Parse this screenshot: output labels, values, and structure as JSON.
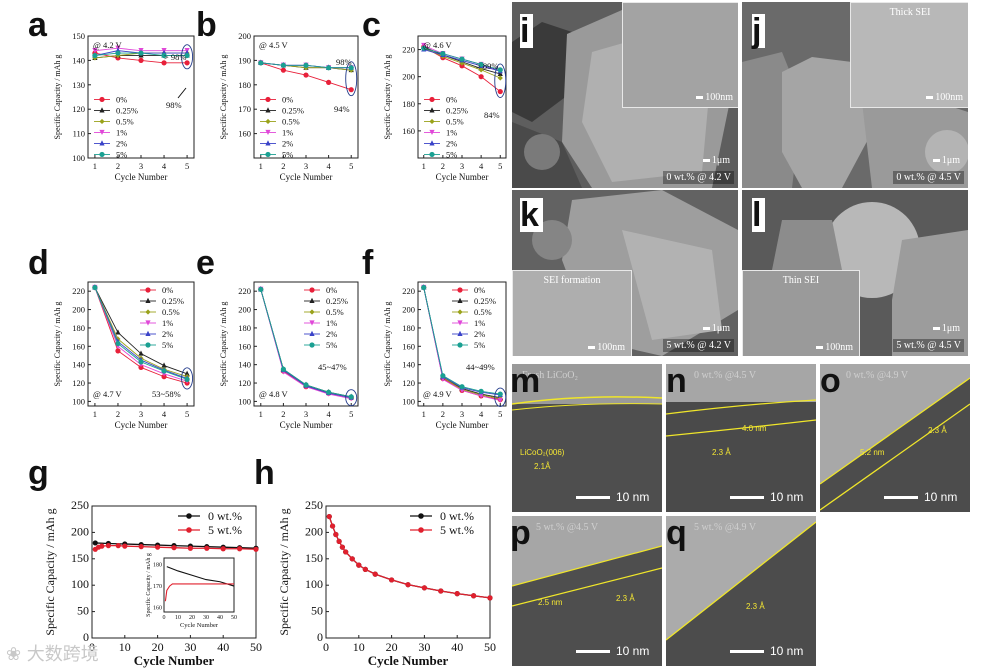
{
  "panel_labels": {
    "a": "a",
    "b": "b",
    "c": "c",
    "d": "d",
    "e": "e",
    "f": "f",
    "g": "g",
    "h": "h",
    "i": "i",
    "j": "j",
    "k": "k",
    "l": "l",
    "m": "m",
    "n": "n",
    "o": "o",
    "p": "p",
    "q": "q"
  },
  "colors": {
    "c0": "#e8203a",
    "c025": "#222222",
    "c05": "#9aa21a",
    "c1": "#e047d8",
    "c2": "#3a43c8",
    "c5": "#1aa092",
    "black": "#111111",
    "red": "#e0202e",
    "tem_line": "#f0e62a"
  },
  "chart_data": [
    {
      "id": "a",
      "type": "line",
      "ylabel": "Specific Capacity / mAh g",
      "xlabel": "Cycle Number",
      "x": [
        1,
        2,
        3,
        4,
        5
      ],
      "ylim": [
        100,
        150
      ],
      "yticks": [
        100,
        110,
        120,
        130,
        140,
        150
      ],
      "condition": "@ 4.2 V",
      "annotations": [
        "> 98%",
        "98%"
      ],
      "series": [
        {
          "name": "0%",
          "values": [
            143,
            141,
            140,
            139,
            139
          ]
        },
        {
          "name": "0.25%",
          "values": [
            141,
            142,
            142,
            142,
            142
          ]
        },
        {
          "name": "0.5%",
          "values": [
            141,
            142,
            143,
            143,
            143
          ]
        },
        {
          "name": "1%",
          "values": [
            144,
            145,
            144,
            144,
            144
          ]
        },
        {
          "name": "2%",
          "values": [
            142,
            144,
            143,
            143,
            143
          ]
        },
        {
          "name": "5%",
          "values": [
            142,
            143,
            143,
            142,
            142
          ]
        }
      ]
    },
    {
      "id": "b",
      "type": "line",
      "ylabel": "Specific Capacity / mAh g",
      "xlabel": "Cycle Number",
      "x": [
        1,
        2,
        3,
        4,
        5
      ],
      "ylim": [
        150,
        200
      ],
      "yticks": [
        160,
        170,
        180,
        190,
        200
      ],
      "condition": "@ 4.5 V",
      "annotations": [
        "98%",
        "94%"
      ],
      "series": [
        {
          "name": "0%",
          "values": [
            189,
            186,
            184,
            181,
            178
          ]
        },
        {
          "name": "0.25%",
          "values": [
            189,
            188,
            187,
            187,
            186
          ]
        },
        {
          "name": "0.5%",
          "values": [
            189,
            188,
            187,
            187,
            186
          ]
        },
        {
          "name": "1%",
          "values": [
            189,
            188,
            188,
            187,
            187
          ]
        },
        {
          "name": "2%",
          "values": [
            189,
            188,
            188,
            187,
            187
          ]
        },
        {
          "name": "5%",
          "values": [
            189,
            188,
            188,
            187,
            187
          ]
        }
      ]
    },
    {
      "id": "c",
      "type": "line",
      "ylabel": "Specific Capacity / mAh g",
      "xlabel": "Cycle Number",
      "x": [
        1,
        2,
        3,
        4,
        5
      ],
      "ylim": [
        140,
        230
      ],
      "yticks": [
        160,
        180,
        200,
        220
      ],
      "condition": "@ 4.6 V",
      "annotations": [
        "> 89%",
        "84%"
      ],
      "series": [
        {
          "name": "0%",
          "values": [
            222,
            214,
            208,
            200,
            189
          ]
        },
        {
          "name": "0.25%",
          "values": [
            222,
            216,
            211,
            206,
            202
          ]
        },
        {
          "name": "0.5%",
          "values": [
            221,
            215,
            210,
            205,
            199
          ]
        },
        {
          "name": "1%",
          "values": [
            223,
            217,
            213,
            209,
            204
          ]
        },
        {
          "name": "2%",
          "values": [
            220,
            216,
            212,
            208,
            204
          ]
        },
        {
          "name": "5%",
          "values": [
            221,
            217,
            213,
            209,
            205
          ]
        }
      ]
    },
    {
      "id": "d",
      "type": "line",
      "ylabel": "Specific Capacity / mAh g",
      "xlabel": "Cycle Number",
      "x": [
        1,
        2,
        3,
        4,
        5
      ],
      "ylim": [
        95,
        230
      ],
      "yticks": [
        100,
        120,
        140,
        160,
        180,
        200,
        220
      ],
      "condition": "@ 4.7 V",
      "annotations": [
        "53~58%"
      ],
      "series": [
        {
          "name": "0%",
          "values": [
            224,
            155,
            137,
            127,
            120
          ]
        },
        {
          "name": "0.25%",
          "values": [
            224,
            175,
            152,
            139,
            130
          ]
        },
        {
          "name": "0.5%",
          "values": [
            224,
            168,
            147,
            135,
            127
          ]
        },
        {
          "name": "1%",
          "values": [
            224,
            160,
            140,
            130,
            122
          ]
        },
        {
          "name": "2%",
          "values": [
            224,
            165,
            145,
            134,
            125
          ]
        },
        {
          "name": "5%",
          "values": [
            224,
            163,
            143,
            133,
            124
          ]
        }
      ]
    },
    {
      "id": "e",
      "type": "line",
      "ylabel": "Specific Capacity / mAh g",
      "xlabel": "Cycle Number",
      "x": [
        1,
        2,
        3,
        4,
        5
      ],
      "ylim": [
        95,
        230
      ],
      "yticks": [
        100,
        120,
        140,
        160,
        180,
        200,
        220
      ],
      "condition": "@ 4.8 V",
      "annotations": [
        "45~47%"
      ],
      "series": [
        {
          "name": "0%",
          "values": [
            222,
            133,
            116,
            109,
            104
          ]
        },
        {
          "name": "0.25%",
          "values": [
            222,
            135,
            118,
            110,
            105
          ]
        },
        {
          "name": "0.5%",
          "values": [
            222,
            134,
            117,
            110,
            104
          ]
        },
        {
          "name": "1%",
          "values": [
            222,
            132,
            116,
            108,
            103
          ]
        },
        {
          "name": "2%",
          "values": [
            222,
            134,
            117,
            109,
            104
          ]
        },
        {
          "name": "5%",
          "values": [
            222,
            135,
            118,
            110,
            105
          ]
        }
      ]
    },
    {
      "id": "f",
      "type": "line",
      "ylabel": "Specific Capacity / mAh g",
      "xlabel": "Cycle Number",
      "x": [
        1,
        2,
        3,
        4,
        5
      ],
      "ylim": [
        95,
        230
      ],
      "yticks": [
        100,
        120,
        140,
        160,
        180,
        200,
        220
      ],
      "condition": "@ 4.9 V",
      "annotations": [
        "44~49%"
      ],
      "series": [
        {
          "name": "0%",
          "values": [
            224,
            125,
            112,
            106,
            102
          ]
        },
        {
          "name": "0.25%",
          "values": [
            224,
            126,
            114,
            108,
            104
          ]
        },
        {
          "name": "0.5%",
          "values": [
            224,
            126,
            113,
            107,
            103
          ]
        },
        {
          "name": "1%",
          "values": [
            224,
            124,
            112,
            106,
            101
          ]
        },
        {
          "name": "2%",
          "values": [
            224,
            127,
            115,
            110,
            107
          ]
        },
        {
          "name": "5%",
          "values": [
            224,
            128,
            116,
            111,
            108
          ]
        }
      ]
    },
    {
      "id": "g",
      "type": "line",
      "ylabel": "Specific Capacity / mAh g",
      "xlabel": "Cycle Number",
      "xlim": [
        0,
        50
      ],
      "xticks": [
        0,
        10,
        20,
        30,
        40,
        50
      ],
      "ylim": [
        0,
        250
      ],
      "yticks": [
        0,
        50,
        100,
        150,
        200,
        250
      ],
      "series": [
        {
          "name": "0 wt.%",
          "x": [
            1,
            5,
            10,
            15,
            20,
            25,
            30,
            35,
            40,
            45,
            50
          ],
          "values": [
            180,
            179,
            178,
            177,
            176,
            175,
            174,
            173,
            172,
            171,
            170
          ]
        },
        {
          "name": "5 wt.%",
          "x": [
            1,
            2,
            3,
            5,
            8,
            10,
            15,
            20,
            25,
            30,
            35,
            40,
            45,
            50
          ],
          "values": [
            168,
            172,
            174,
            175,
            175,
            174,
            173,
            172,
            171,
            170,
            170,
            169,
            169,
            168
          ]
        }
      ],
      "inset": {
        "ylabel": "Specific Capacity / mAh g",
        "xlabel": "Cycle Number",
        "xticks": [
          0,
          10,
          20,
          30,
          40,
          50
        ],
        "yticks": [
          160,
          170,
          180
        ],
        "ylim": [
          158,
          183
        ],
        "series": [
          {
            "name": "0 wt.%",
            "x": [
              2,
              10,
              20,
              30,
              40,
              50
            ],
            "values": [
              179,
              177,
              175,
              173,
              172,
              170
            ]
          },
          {
            "name": "5 wt.%",
            "x": [
              1,
              2,
              4,
              6,
              10,
              20,
              30,
              40,
              50
            ],
            "values": [
              163,
              168,
              170,
              171,
              171,
              171,
              171,
              171,
              171
            ]
          }
        ]
      }
    },
    {
      "id": "h",
      "type": "line",
      "ylabel": "Specific Capacity / mAh g",
      "xlabel": "Cycle Number",
      "xlim": [
        0,
        50
      ],
      "xticks": [
        0,
        10,
        20,
        30,
        40,
        50
      ],
      "ylim": [
        0,
        250
      ],
      "yticks": [
        0,
        50,
        100,
        150,
        200,
        250
      ],
      "series": [
        {
          "name": "0 wt.%",
          "x": [
            1,
            2,
            3,
            4,
            5,
            6,
            8,
            10,
            12,
            15,
            20,
            25,
            30,
            35,
            40,
            45,
            50
          ],
          "values": [
            230,
            212,
            196,
            183,
            172,
            163,
            150,
            138,
            130,
            121,
            110,
            101,
            95,
            89,
            84,
            80,
            76
          ]
        },
        {
          "name": "5 wt.%",
          "x": [
            1,
            2,
            3,
            4,
            5,
            6,
            8,
            10,
            12,
            15,
            20,
            25,
            30,
            35,
            40,
            45,
            50
          ],
          "values": [
            230,
            212,
            196,
            183,
            172,
            163,
            150,
            138,
            130,
            121,
            110,
            101,
            95,
            89,
            84,
            80,
            76
          ]
        }
      ]
    }
  ],
  "sem": {
    "i": {
      "caption": "0 wt.% @ 4.2 V",
      "scale": "1μm",
      "inset_scale": "100nm",
      "inset_title": ""
    },
    "j": {
      "caption": "0 wt.% @ 4.5 V",
      "scale": "1μm",
      "inset_scale": "100nm",
      "inset_title": "Thick SEI"
    },
    "k": {
      "caption": "5 wt.% @ 4.2 V",
      "scale": "1μm",
      "inset_scale": "100nm",
      "inset_title": "SEI formation"
    },
    "l": {
      "caption": "5 wt.% @ 4.5 V",
      "scale": "1μm",
      "inset_scale": "100nm",
      "inset_title": "Thin SEI"
    }
  },
  "tem": {
    "m": {
      "caption": "Fresh LiCoO₂",
      "scale": "10 nm",
      "labels": [
        "LiCoO₂(006)",
        "2.1Å"
      ]
    },
    "n": {
      "caption": "0 wt.% @4.5 V",
      "scale": "10 nm",
      "labels": [
        "4.0 nm",
        "2.3 Å"
      ]
    },
    "o": {
      "caption": "0 wt.% @4.9 V",
      "scale": "10 nm",
      "labels": [
        "5.2 nm",
        "2.3 Å"
      ]
    },
    "p": {
      "caption": "5 wt.% @4.5 V",
      "scale": "10 nm",
      "labels": [
        "2.5 nm",
        "2.3 Å"
      ]
    },
    "q": {
      "caption": "5 wt.% @4.9 V",
      "scale": "10 nm",
      "labels": [
        "2.3 Å"
      ]
    }
  },
  "watermark": "❀ 大数跨境"
}
